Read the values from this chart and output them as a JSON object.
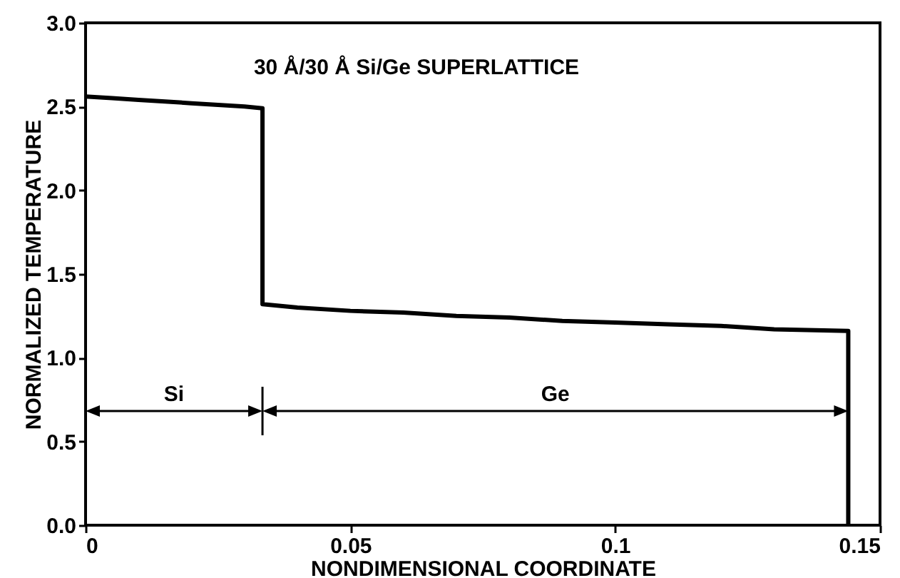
{
  "chart_data": {
    "type": "line",
    "title": "30 Å/30 Å Si/Ge SUPERLATTICE",
    "xlabel": "NONDIMENSIONAL COORDINATE",
    "ylabel": "NORMALIZED TEMPERATURE",
    "series": [
      {
        "color": "#000000",
        "x": [
          0,
          0.005,
          0.01,
          0.015,
          0.02,
          0.025,
          0.03,
          0.0334,
          0.0334,
          0.04,
          0.05,
          0.06,
          0.07,
          0.08,
          0.09,
          0.1,
          0.11,
          0.12,
          0.13,
          0.144,
          0.144
        ],
        "values": [
          2.56,
          2.55,
          2.54,
          2.53,
          2.52,
          2.51,
          2.5,
          2.49,
          1.32,
          1.3,
          1.28,
          1.27,
          1.25,
          1.24,
          1.22,
          1.21,
          1.2,
          1.19,
          1.17,
          1.16,
          0
        ]
      }
    ],
    "annotations": [
      "Si",
      "Ge"
    ],
    "xlim": [
      0,
      0.15
    ],
    "xticks": [
      0,
      0.05,
      0.1,
      0.15
    ],
    "ylim": [
      0,
      3
    ],
    "yticks": [
      {
        "value": 0,
        "label": "0.0"
      },
      {
        "value": 0.5,
        "label": "0.5"
      },
      {
        "value": 1,
        "label": "1.0"
      },
      {
        "value": 1.5,
        "label": "1.5"
      },
      {
        "value": 2,
        "label": "2.0"
      },
      {
        "value": 2.5,
        "label": "2.5"
      },
      {
        "value": 3,
        "label": "3.0"
      }
    ],
    "grid": false,
    "marker": "none",
    "line_style": "solid"
  }
}
